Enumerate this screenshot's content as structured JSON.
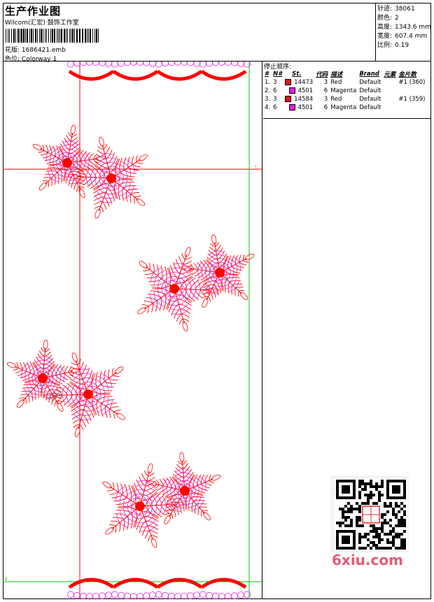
{
  "header": {
    "title": "生产作业图",
    "company": "Wilcom(汇宏) 鼓饰工作室",
    "design_label": "花版:",
    "design_value": "1686421.emb",
    "color_label": "色位:",
    "color_value": "Colorway 1"
  },
  "stats": [
    {
      "label": "针迹:",
      "value": "38061"
    },
    {
      "label": "颜色:",
      "value": "2"
    },
    {
      "label": "高度:",
      "value": "1343.6 mm"
    },
    {
      "label": "宽度:",
      "value": "607.4 mm"
    },
    {
      "label": "比例:",
      "value": "0.19"
    }
  ],
  "sequence": {
    "title": "停止顺序:",
    "columns": [
      "#",
      "N#",
      "St.",
      "代码",
      "描述",
      "Brand",
      "元素",
      "金片数"
    ],
    "rows": [
      {
        "idx": "1.",
        "n": "3",
        "color": "#e8141c",
        "st": "14473",
        "code": "3",
        "desc": "Red",
        "brand": "Default",
        "elem": "",
        "seq": "#1 (360)"
      },
      {
        "idx": "2.",
        "n": "6",
        "color": "#e81ce8",
        "st": "4501",
        "code": "6",
        "desc": "Magenta",
        "brand": "Default",
        "elem": "",
        "seq": ""
      },
      {
        "idx": "3.",
        "n": "3",
        "color": "#e8141c",
        "st": "14584",
        "code": "3",
        "desc": "Red",
        "brand": "Default",
        "elem": "",
        "seq": "#1 (359)"
      },
      {
        "idx": "4.",
        "n": "6",
        "color": "#e81ce8",
        "st": "4501",
        "code": "6",
        "desc": "Magenta",
        "brand": "Default",
        "elem": "",
        "seq": ""
      }
    ]
  },
  "watermark": "6xiu.com",
  "colors": {
    "thread_red": "#ff0000",
    "thread_magenta": "#e020e0",
    "guide_green": "#00c800",
    "guide_red": "#ff0000"
  }
}
